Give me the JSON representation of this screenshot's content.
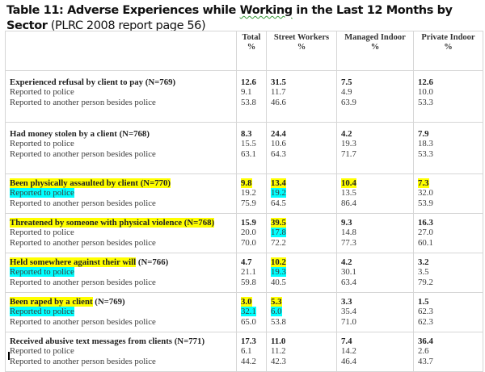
{
  "title": {
    "prefix": "Table 11: Adverse Experiences while ",
    "wavy": "Working",
    "suffix": " in the Last 12 Months by Sector",
    "source": " (PLRC 2008 report page 56)"
  },
  "columns": [
    {
      "label": "",
      "unit": ""
    },
    {
      "label": "Total",
      "unit": "%"
    },
    {
      "label": "Street Workers",
      "unit": "%"
    },
    {
      "label": "Managed Indoor",
      "unit": "%"
    },
    {
      "label": "Private Indoor",
      "unit": "%"
    }
  ],
  "rows": [
    {
      "label": "Experienced refusal by client to pay",
      "n": "(N=769)",
      "sub1": "Reported to police",
      "sub2": "Reported to another person besides police",
      "vals": [
        [
          "12.6",
          "9.1",
          "53.8"
        ],
        [
          "31.5",
          "11.7",
          "46.6"
        ],
        [
          "7.5",
          "4.9",
          "63.9"
        ],
        [
          "12.6",
          "10.0",
          "53.3"
        ]
      ]
    },
    {
      "label": "Had money stolen by a client",
      "n": "(N=768)",
      "sub1": "Reported to police",
      "sub2": "Reported to another person besides police",
      "vals": [
        [
          "8.3",
          "15.5",
          "63.1"
        ],
        [
          "24.4",
          "10.6",
          "64.3"
        ],
        [
          "4.2",
          "19.3",
          "71.7"
        ],
        [
          "7.9",
          "18.3",
          "53.3"
        ]
      ]
    },
    {
      "label": "Been physically assaulted by client",
      "n": "(N=770)",
      "sub1": "Reported to police",
      "sub2": "Reported to another person besides police",
      "vals": [
        [
          "9.8",
          "19.2",
          "75.9"
        ],
        [
          "13.4",
          "19.2",
          "64.5"
        ],
        [
          "10.4",
          "13.5",
          "86.4"
        ],
        [
          "7.3",
          "32.0",
          "53.9"
        ]
      ]
    },
    {
      "label": "Threatened by someone with physical violence",
      "n": "(N=768)",
      "sub1": "Reported to police",
      "sub2": "Reported to another person besides police",
      "vals": [
        [
          "15.9",
          "20.0",
          "70.0"
        ],
        [
          "39.5",
          "17.8",
          "72.2"
        ],
        [
          "9.3",
          "14.8",
          "77.3"
        ],
        [
          "16.3",
          "27.0",
          "60.1"
        ]
      ]
    },
    {
      "label": "Held somewhere against their will",
      "n": "(N=766)",
      "sub1": "Reported to police",
      "sub2": "Reported to another person besides police",
      "vals": [
        [
          "4.7",
          "21.1",
          "59.8"
        ],
        [
          "10.2",
          "19.3",
          "40.5"
        ],
        [
          "4.2",
          "30.1",
          "63.4"
        ],
        [
          "3.2",
          "3.5",
          "79.2"
        ]
      ]
    },
    {
      "label": "Been raped by a client",
      "n": "(N=769)",
      "sub1": "Reported to police",
      "sub2": "Reported to another person besides police",
      "vals": [
        [
          "3.0",
          "32.1",
          "65.0"
        ],
        [
          "5.3",
          "6.0",
          "53.8"
        ],
        [
          "3.3",
          "35.4",
          "71.0"
        ],
        [
          "1.5",
          "62.3",
          "62.3"
        ]
      ]
    },
    {
      "label": "Received abusive text messages from clients",
      "n": "(N=771)",
      "sub1": "Reported to police",
      "sub2": "Reported to another person besides police",
      "vals": [
        [
          "17.3",
          "6.1",
          "44.2"
        ],
        [
          "11.0",
          "11.2",
          "42.3"
        ],
        [
          "7.4",
          "14.2",
          "46.4"
        ],
        [
          "36.4",
          "2.6",
          "43.7"
        ]
      ]
    }
  ],
  "highlight_colors": {
    "yellow": "#ffff00",
    "cyan": "#00ffff"
  }
}
